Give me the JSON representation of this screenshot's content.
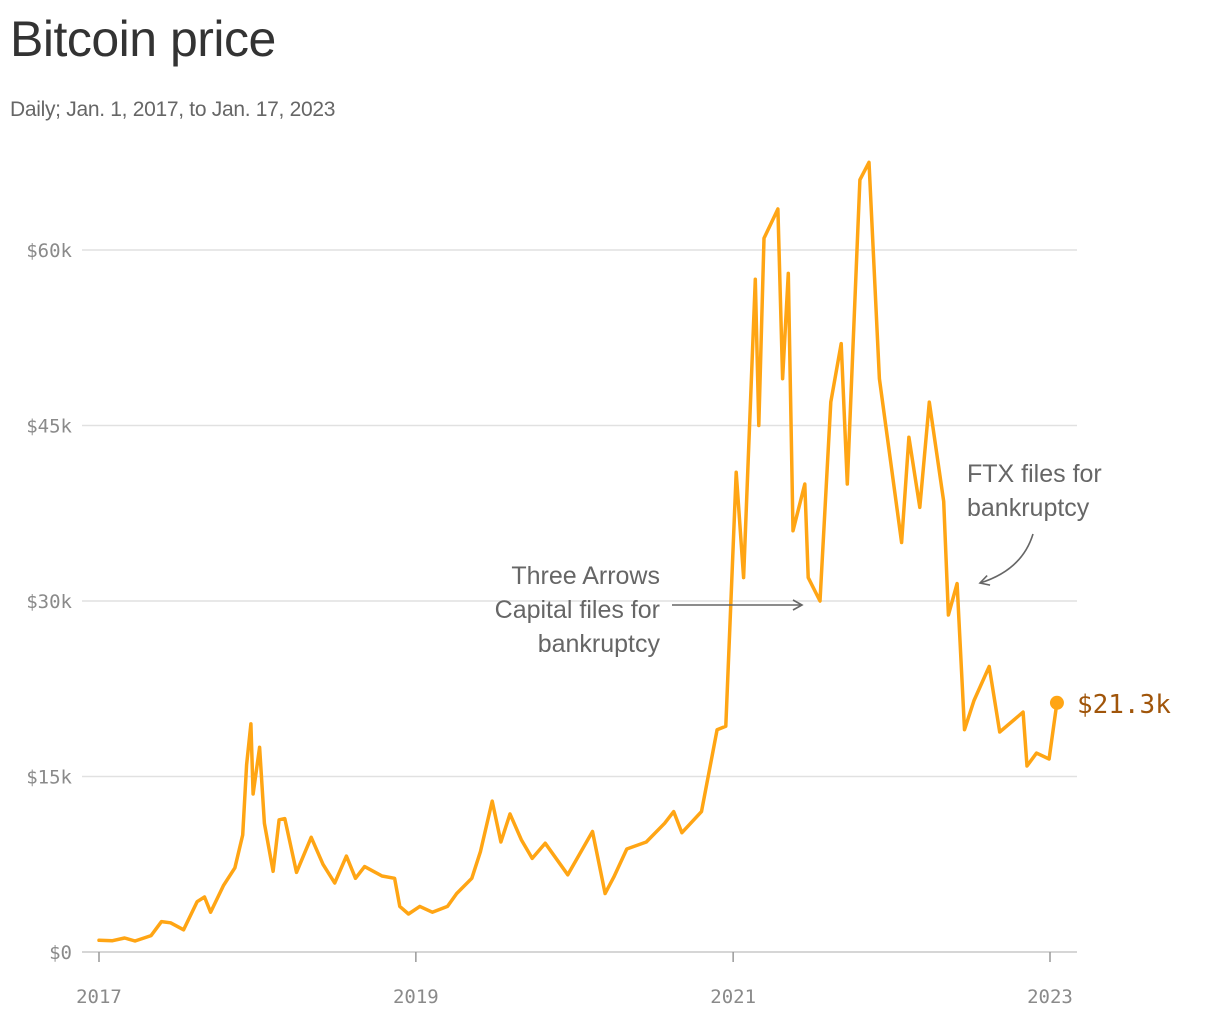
{
  "title": "Bitcoin price",
  "subtitle": "Daily; Jan. 1, 2017, to Jan. 17, 2023",
  "colors": {
    "line": "#ffa514",
    "end_label": "#a0550a",
    "grid": "#e1e1e1",
    "annotation": "#666666"
  },
  "annotations": {
    "three_arrows": [
      "Three Arrows",
      "Capital files for",
      "bankruptcy"
    ],
    "ftx": [
      "FTX files for",
      "bankruptcy"
    ]
  },
  "end_label": "$21.3k",
  "chart_data": {
    "type": "line",
    "title": "Bitcoin price",
    "subtitle": "Daily; Jan. 1, 2017, to Jan. 17, 2023",
    "xlabel": "",
    "ylabel": "",
    "xlim": [
      "2017-01-01",
      "2023-02-01"
    ],
    "ylim": [
      0,
      60000
    ],
    "x_ticks": [
      "2017",
      "2019",
      "2021",
      "2023"
    ],
    "y_ticks": [
      "$0",
      "$15k",
      "$30k",
      "$45k",
      "$60k"
    ],
    "grid": "horizontal",
    "series": [
      {
        "points": [
          [
            "2017-01-01",
            1000
          ],
          [
            "2017-02-01",
            970
          ],
          [
            "2017-03-01",
            1200
          ],
          [
            "2017-03-25",
            940
          ],
          [
            "2017-05-01",
            1400
          ],
          [
            "2017-05-25",
            2600
          ],
          [
            "2017-06-15",
            2500
          ],
          [
            "2017-07-15",
            1900
          ],
          [
            "2017-08-15",
            4300
          ],
          [
            "2017-09-01",
            4700
          ],
          [
            "2017-09-15",
            3400
          ],
          [
            "2017-10-15",
            5700
          ],
          [
            "2017-11-10",
            7200
          ],
          [
            "2017-11-28",
            10000
          ],
          [
            "2017-12-07",
            16000
          ],
          [
            "2017-12-17",
            19500
          ],
          [
            "2017-12-22",
            13500
          ],
          [
            "2018-01-06",
            17500
          ],
          [
            "2018-01-17",
            11000
          ],
          [
            "2018-02-06",
            6900
          ],
          [
            "2018-02-20",
            11300
          ],
          [
            "2018-03-05",
            11400
          ],
          [
            "2018-04-01",
            6800
          ],
          [
            "2018-05-05",
            9800
          ],
          [
            "2018-06-01",
            7500
          ],
          [
            "2018-06-28",
            5900
          ],
          [
            "2018-07-25",
            8200
          ],
          [
            "2018-08-15",
            6300
          ],
          [
            "2018-09-05",
            7300
          ],
          [
            "2018-10-15",
            6500
          ],
          [
            "2018-11-13",
            6300
          ],
          [
            "2018-11-25",
            3900
          ],
          [
            "2018-12-15",
            3250
          ],
          [
            "2019-01-10",
            3900
          ],
          [
            "2019-02-08",
            3400
          ],
          [
            "2019-03-15",
            3900
          ],
          [
            "2019-04-05",
            5000
          ],
          [
            "2019-05-10",
            6300
          ],
          [
            "2019-05-30",
            8600
          ],
          [
            "2019-06-26",
            12900
          ],
          [
            "2019-07-16",
            9400
          ],
          [
            "2019-08-06",
            11800
          ],
          [
            "2019-09-01",
            9600
          ],
          [
            "2019-09-26",
            8000
          ],
          [
            "2019-10-26",
            9300
          ],
          [
            "2019-12-17",
            6600
          ],
          [
            "2020-02-12",
            10300
          ],
          [
            "2020-03-12",
            5000
          ],
          [
            "2020-04-01",
            6400
          ],
          [
            "2020-05-01",
            8800
          ],
          [
            "2020-06-15",
            9400
          ],
          [
            "2020-07-27",
            11000
          ],
          [
            "2020-08-17",
            12000
          ],
          [
            "2020-09-05",
            10200
          ],
          [
            "2020-10-20",
            12000
          ],
          [
            "2020-11-25",
            19000
          ],
          [
            "2020-12-15",
            19300
          ],
          [
            "2021-01-08",
            41000
          ],
          [
            "2021-01-25",
            32000
          ],
          [
            "2021-02-21",
            57500
          ],
          [
            "2021-03-01",
            45000
          ],
          [
            "2021-03-13",
            61000
          ],
          [
            "2021-04-14",
            63500
          ],
          [
            "2021-04-25",
            49000
          ],
          [
            "2021-05-08",
            58000
          ],
          [
            "2021-05-19",
            36000
          ],
          [
            "2021-06-15",
            40000
          ],
          [
            "2021-06-23",
            32000
          ],
          [
            "2021-07-20",
            30000
          ],
          [
            "2021-08-14",
            47000
          ],
          [
            "2021-09-07",
            52000
          ],
          [
            "2021-09-21",
            40000
          ],
          [
            "2021-10-20",
            66000
          ],
          [
            "2021-11-10",
            67500
          ],
          [
            "2021-12-04",
            49000
          ],
          [
            "2022-01-24",
            35000
          ],
          [
            "2022-02-10",
            44000
          ],
          [
            "2022-03-07",
            38000
          ],
          [
            "2022-03-29",
            47000
          ],
          [
            "2022-05-01",
            38500
          ],
          [
            "2022-05-12",
            28800
          ],
          [
            "2022-06-01",
            31500
          ],
          [
            "2022-06-18",
            19000
          ],
          [
            "2022-07-10",
            21500
          ],
          [
            "2022-08-14",
            24400
          ],
          [
            "2022-09-07",
            18800
          ],
          [
            "2022-10-31",
            20500
          ],
          [
            "2022-11-09",
            15900
          ],
          [
            "2022-12-01",
            17000
          ],
          [
            "2022-12-30",
            16500
          ],
          [
            "2023-01-17",
            21300
          ]
        ]
      }
    ],
    "annotations": [
      {
        "date": "2022-07-01",
        "label": "Three Arrows Capital files for bankruptcy"
      },
      {
        "date": "2022-11-11",
        "label": "FTX files for bankruptcy"
      }
    ],
    "end_value_label": "$21.3k"
  }
}
